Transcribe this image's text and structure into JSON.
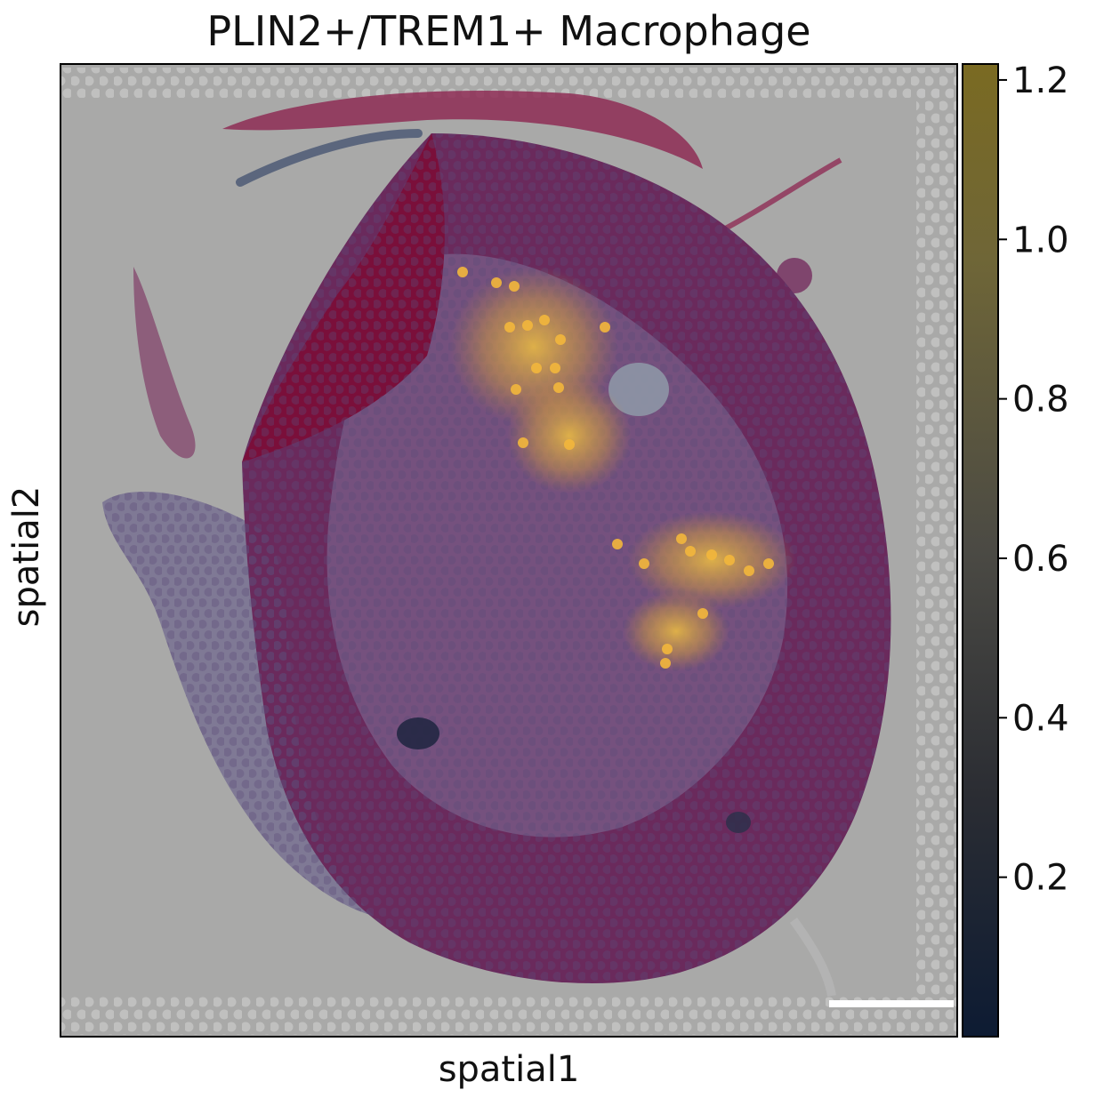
{
  "chart_data": {
    "type": "scatter",
    "title": "PLIN2+/TREM1+ Macrophage",
    "xlabel": "spatial1",
    "ylabel": "spatial2",
    "colorbar": {
      "ticks": [
        0.2,
        0.4,
        0.6,
        0.8,
        1.0,
        1.2
      ],
      "tick_labels": [
        "0.2",
        "0.4",
        "0.6",
        "0.8",
        "1.0",
        "1.2"
      ],
      "range": [
        0.0,
        1.22
      ],
      "colors": [
        "#0d1b33",
        "#2b2d33",
        "#4b4a44",
        "#6f6637",
        "#7a6a22"
      ]
    },
    "background": "H&E tissue section with hexagonal spot grid",
    "hotspots": [
      {
        "region": "upper-center",
        "value": 1.15
      },
      {
        "region": "center-right",
        "value": 1.1
      },
      {
        "region": "lower-right-of-center",
        "value": 0.95
      }
    ],
    "scale_bar": true
  }
}
